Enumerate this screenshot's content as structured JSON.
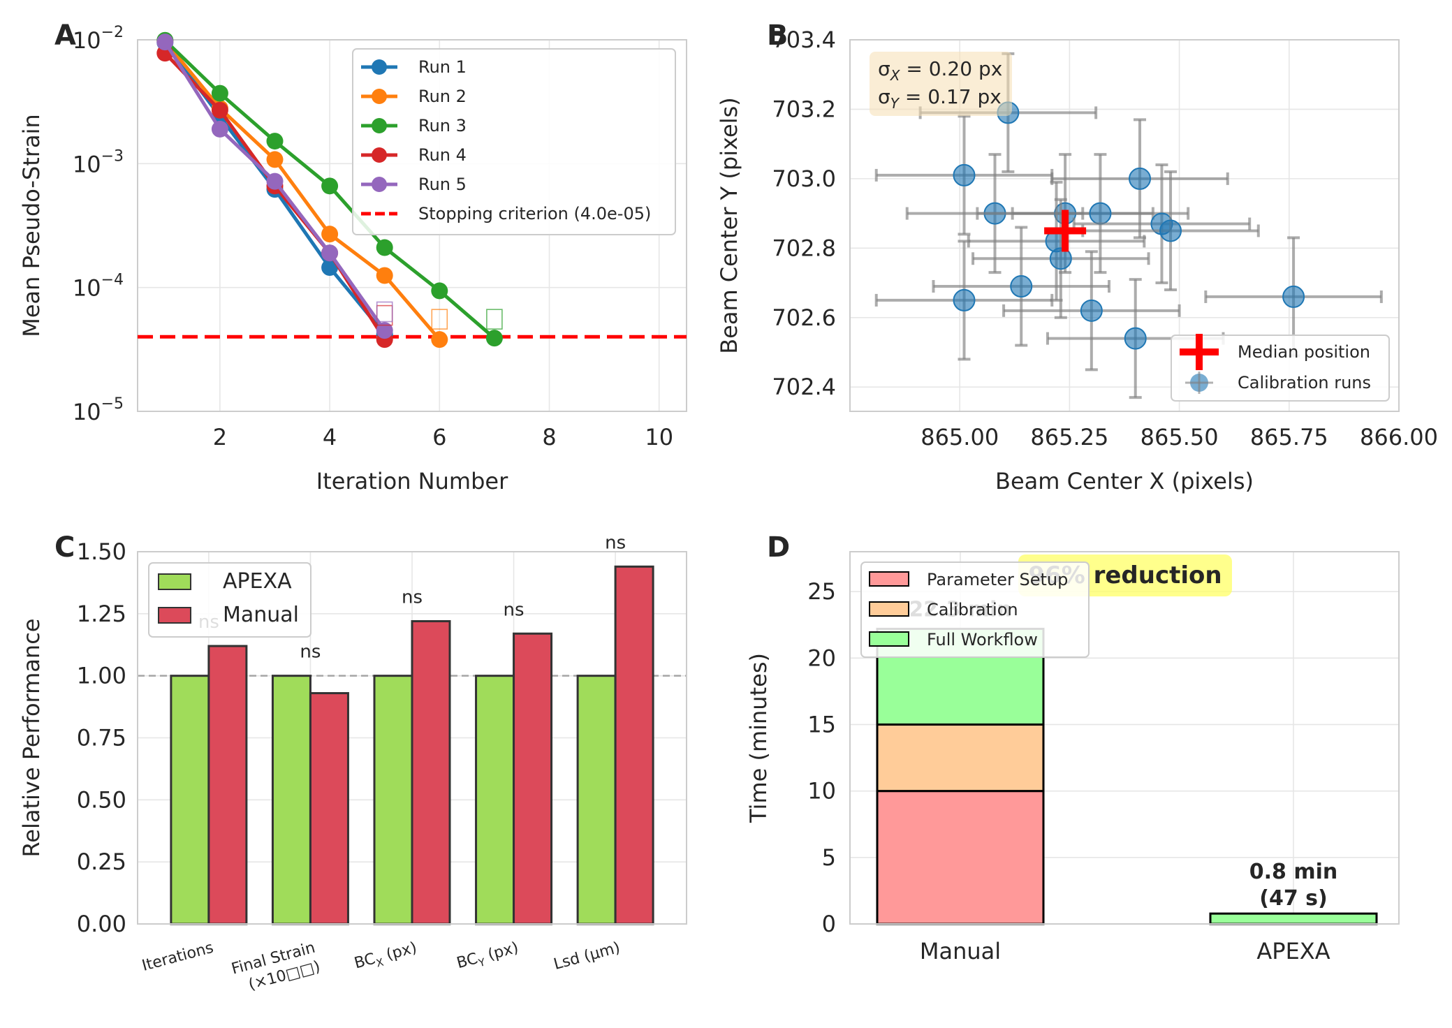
{
  "chart_data": [
    {
      "panel_letter": "A",
      "type": "line",
      "xlabel": "Iteration Number",
      "ylabel": "Mean Pseudo-Strain",
      "yscale": "log",
      "xlim": [
        0.5,
        10.5
      ],
      "ylim": [
        1e-05,
        0.01
      ],
      "x_ticks": [
        2,
        4,
        6,
        8,
        10
      ],
      "y_ticks": [
        {
          "value": 1e-05,
          "base": "10",
          "exp": "−5"
        },
        {
          "value": 0.0001,
          "base": "10",
          "exp": "−4"
        },
        {
          "value": 0.001,
          "base": "10",
          "exp": "−3"
        },
        {
          "value": 0.01,
          "base": "10",
          "exp": "−2"
        }
      ],
      "grid": true,
      "legend_position": "top-right",
      "series": [
        {
          "name": "Run 1",
          "color": "#1f77b4",
          "x": [
            1,
            2,
            3,
            4,
            5
          ],
          "y": [
            0.0095,
            0.0024,
            0.00062,
            0.000145,
            4.2e-05
          ]
        },
        {
          "name": "Run 2",
          "color": "#ff7f0e",
          "x": [
            1,
            2,
            3,
            4,
            5,
            6
          ],
          "y": [
            0.0098,
            0.0028,
            0.00108,
            0.00027,
            0.000125,
            3.8e-05
          ]
        },
        {
          "name": "Run 3",
          "color": "#2ca02c",
          "x": [
            1,
            2,
            3,
            4,
            5,
            6,
            7
          ],
          "y": [
            0.0099,
            0.0037,
            0.00152,
            0.00066,
            0.00021,
            9.4e-05,
            3.9e-05
          ]
        },
        {
          "name": "Run 4",
          "color": "#d62728",
          "x": [
            1,
            2,
            3,
            4,
            5
          ],
          "y": [
            0.0078,
            0.0027,
            0.00066,
            0.00019,
            3.8e-05
          ]
        },
        {
          "name": "Run 5",
          "color": "#9467bd",
          "x": [
            1,
            2,
            3,
            4,
            5
          ],
          "y": [
            0.0096,
            0.0019,
            0.00072,
            0.00019,
            4.5e-05
          ]
        }
      ],
      "end_markers": [
        {
          "x": 5,
          "color": "#d62728",
          "y": 5.8e-05
        },
        {
          "x": 5,
          "color": "#9467bd",
          "y": 6.2e-05
        },
        {
          "x": 6,
          "color": "#ff7f0e",
          "y": 5.4e-05
        },
        {
          "x": 7,
          "color": "#2ca02c",
          "y": 5.4e-05
        }
      ],
      "hline": {
        "label": "Stopping criterion (4.0e-05)",
        "y": 4e-05,
        "color": "#ff0000"
      }
    },
    {
      "panel_letter": "B",
      "type": "scatter",
      "xlabel": "Beam Center X (pixels)",
      "ylabel": "Beam Center Y (pixels)",
      "xlim": [
        864.75,
        866.0
      ],
      "ylim": [
        702.33,
        703.4
      ],
      "x_ticks": [
        "865.00",
        "865.25",
        "865.50",
        "865.75",
        "866.00"
      ],
      "y_ticks": [
        "702.4",
        "702.6",
        "702.8",
        "703.0",
        "703.2",
        "703.4"
      ],
      "grid": true,
      "legend_position": "bottom-right",
      "legend": {
        "median_label": "Median position",
        "runs_label": "Calibration runs"
      },
      "annotation": {
        "line1_sigma": "σ",
        "line1_sub": "X",
        "line1_rest": " = 0.20 px",
        "line2_sigma": "σ",
        "line2_sub": "Y",
        "line2_rest": " = 0.17 px"
      },
      "median": {
        "x": 865.24,
        "y": 702.85
      },
      "points": [
        {
          "x": 865.11,
          "y": 703.19,
          "xerr": 0.2,
          "yerr": 0.17
        },
        {
          "x": 865.01,
          "y": 703.01,
          "xerr": 0.2,
          "yerr": 0.17
        },
        {
          "x": 865.41,
          "y": 703.0,
          "xerr": 0.2,
          "yerr": 0.17
        },
        {
          "x": 865.08,
          "y": 702.9,
          "xerr": 0.2,
          "yerr": 0.17
        },
        {
          "x": 865.24,
          "y": 702.9,
          "xerr": 0.2,
          "yerr": 0.17
        },
        {
          "x": 865.32,
          "y": 702.9,
          "xerr": 0.2,
          "yerr": 0.17
        },
        {
          "x": 865.46,
          "y": 702.87,
          "xerr": 0.2,
          "yerr": 0.17
        },
        {
          "x": 865.48,
          "y": 702.85,
          "xerr": 0.2,
          "yerr": 0.17
        },
        {
          "x": 865.22,
          "y": 702.82,
          "xerr": 0.2,
          "yerr": 0.17
        },
        {
          "x": 865.23,
          "y": 702.77,
          "xerr": 0.2,
          "yerr": 0.17
        },
        {
          "x": 865.14,
          "y": 702.69,
          "xerr": 0.2,
          "yerr": 0.17
        },
        {
          "x": 865.01,
          "y": 702.65,
          "xerr": 0.2,
          "yerr": 0.17
        },
        {
          "x": 865.3,
          "y": 702.62,
          "xerr": 0.2,
          "yerr": 0.17
        },
        {
          "x": 865.4,
          "y": 702.54,
          "xerr": 0.2,
          "yerr": 0.17
        },
        {
          "x": 865.76,
          "y": 702.66,
          "xerr": 0.2,
          "yerr": 0.17
        }
      ]
    },
    {
      "panel_letter": "C",
      "type": "bar",
      "ylabel": "Relative Performance",
      "ylim": [
        0,
        1.5
      ],
      "y_ticks": [
        "0.00",
        "0.25",
        "0.50",
        "0.75",
        "1.00",
        "1.25",
        "1.50"
      ],
      "grid": true,
      "legend_position": "top-left",
      "reference_line": 1.0,
      "categories": [
        {
          "lines": [
            {
              "text": "Iterations"
            }
          ]
        },
        {
          "lines": [
            {
              "text": "Final Strain"
            },
            {
              "text": "(×10□□)"
            }
          ]
        },
        {
          "lines": [
            {
              "text": "BC",
              "sub": "X",
              "after": " (px)"
            }
          ]
        },
        {
          "lines": [
            {
              "text": "BC",
              "sub": "Y",
              "after": " (px)"
            }
          ]
        },
        {
          "lines": [
            {
              "text": "Lsd (μm)"
            }
          ]
        }
      ],
      "series": [
        {
          "name": "APEXA",
          "color": "#a0dc5a",
          "values": [
            1.0,
            1.0,
            1.0,
            1.0,
            1.0
          ]
        },
        {
          "name": "Manual",
          "color": "#dc4a5a",
          "values": [
            1.12,
            0.93,
            1.22,
            1.17,
            1.44
          ]
        }
      ],
      "significance_labels": [
        "ns",
        "ns",
        "ns",
        "ns",
        "ns"
      ]
    },
    {
      "panel_letter": "D",
      "type": "bar",
      "ylabel": "Time (minutes)",
      "ylim": [
        0,
        28
      ],
      "y_ticks": [
        "0",
        "5",
        "10",
        "15",
        "20",
        "25"
      ],
      "grid": true,
      "legend_position": "top-left",
      "categories": [
        "Manual",
        "APEXA"
      ],
      "stacks": [
        {
          "name": "Parameter Setup",
          "color": "#ff9999",
          "values": [
            10,
            0
          ]
        },
        {
          "name": "Calibration",
          "color": "#ffcc99",
          "values": [
            5,
            0
          ]
        },
        {
          "name": "Full Workflow",
          "color": "#99ff99",
          "values": [
            7.2,
            0.78
          ]
        }
      ],
      "total_labels": [
        {
          "line1": "22.3 min",
          "line2": ""
        },
        {
          "line1": "0.8 min",
          "line2": "(47 s)"
        }
      ],
      "reduction_label": "96% reduction",
      "reduction_color": "#ffff66"
    }
  ]
}
